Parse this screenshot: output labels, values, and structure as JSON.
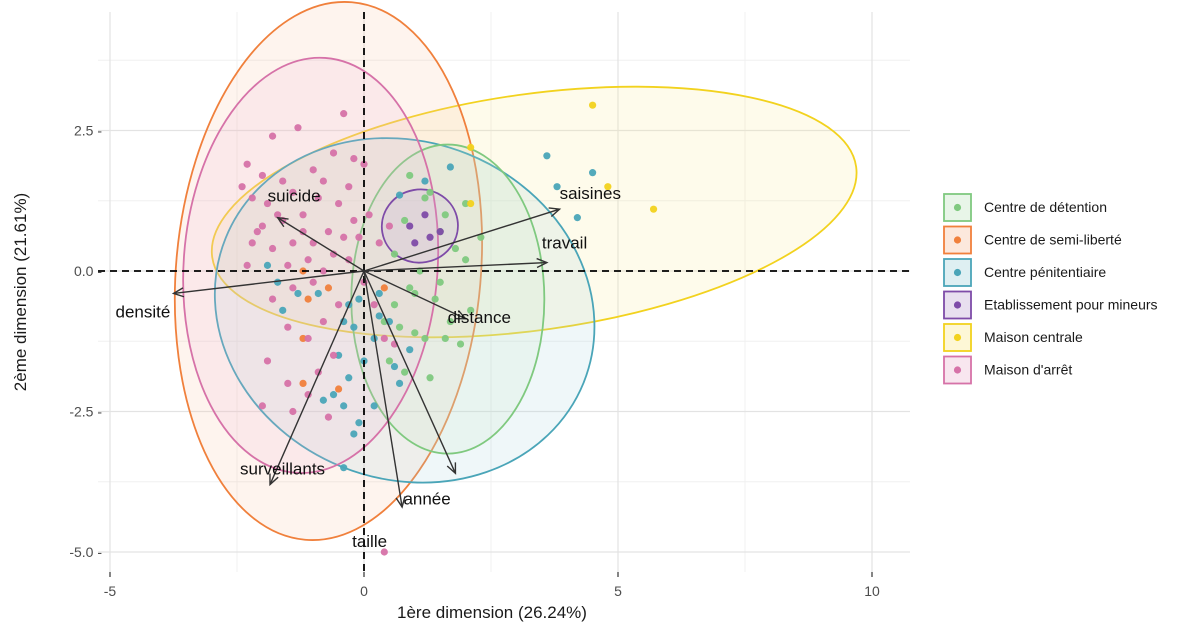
{
  "chart_data": {
    "type": "scatter",
    "title": "",
    "xlabel": "1ère dimension (26.24%)",
    "ylabel": "2ème dimension (21.61%)",
    "xlim": [
      -10,
      10.8
    ],
    "ylim": [
      -5.4,
      4.75
    ],
    "x_ticks": [
      -5,
      0,
      5,
      10
    ],
    "x_tick_labels": [
      "-5",
      "0",
      "5",
      "10"
    ],
    "y_ticks": [
      -5,
      -2.5,
      0,
      2.5
    ],
    "y_tick_labels": [
      "-5.0 -",
      "-2.5 -",
      "0.0 -",
      "2.5 -"
    ],
    "grid": true,
    "legend_position": "right",
    "reference_lines": {
      "x": 0,
      "y": 0,
      "style": "dashed"
    },
    "series": [
      {
        "name": "Centre de détention",
        "color": "#7FC97F",
        "points": [
          [
            1.2,
            1.3
          ],
          [
            0.8,
            0.9
          ],
          [
            1.5,
            0.7
          ],
          [
            1.8,
            0.4
          ],
          [
            2.0,
            0.2
          ],
          [
            1.1,
            0.0
          ],
          [
            0.9,
            -0.3
          ],
          [
            1.4,
            -0.5
          ],
          [
            1.7,
            -0.9
          ],
          [
            0.6,
            -0.6
          ],
          [
            0.7,
            -1.0
          ],
          [
            1.0,
            -1.1
          ],
          [
            1.2,
            -1.2
          ],
          [
            1.6,
            -1.2
          ],
          [
            1.9,
            -1.3
          ],
          [
            2.1,
            -0.7
          ],
          [
            0.5,
            -1.6
          ],
          [
            0.8,
            -1.8
          ],
          [
            1.3,
            -1.9
          ],
          [
            0.4,
            -0.9
          ],
          [
            2.3,
            0.6
          ],
          [
            1.6,
            1.0
          ],
          [
            0.9,
            1.7
          ],
          [
            1.3,
            1.4
          ],
          [
            1.0,
            -0.4
          ],
          [
            1.5,
            -0.2
          ],
          [
            0.6,
            0.3
          ],
          [
            2.0,
            1.2
          ]
        ]
      },
      {
        "name": "Centre de semi-liberté",
        "color": "#F0803C",
        "points": [
          [
            -1.2,
            0.0
          ],
          [
            -1.1,
            -0.5
          ],
          [
            -1.2,
            -2.0
          ],
          [
            -0.5,
            -2.1
          ],
          [
            -1.2,
            -1.2
          ],
          [
            0.4,
            -0.3
          ],
          [
            -0.7,
            -0.3
          ]
        ]
      },
      {
        "name": "Centre pénitentiaire",
        "color": "#4AA5B8",
        "points": [
          [
            3.6,
            2.05
          ],
          [
            4.2,
            0.95
          ],
          [
            4.5,
            1.75
          ],
          [
            3.8,
            1.5
          ],
          [
            1.7,
            1.85
          ],
          [
            1.2,
            1.6
          ],
          [
            0.7,
            1.35
          ],
          [
            -0.3,
            -0.6
          ],
          [
            -0.2,
            -1.0
          ],
          [
            -0.4,
            -0.9
          ],
          [
            -0.5,
            -1.5
          ],
          [
            -0.3,
            -1.9
          ],
          [
            -0.8,
            -2.3
          ],
          [
            -0.4,
            -2.4
          ],
          [
            -0.1,
            -2.7
          ],
          [
            -0.4,
            -3.5
          ],
          [
            0.2,
            -1.2
          ],
          [
            -0.1,
            -0.5
          ],
          [
            0.3,
            -0.8
          ],
          [
            0.5,
            -0.9
          ],
          [
            0.0,
            -1.6
          ],
          [
            -0.6,
            -2.2
          ],
          [
            -0.9,
            -0.4
          ],
          [
            -1.6,
            -0.7
          ],
          [
            -1.3,
            -0.4
          ],
          [
            -1.9,
            0.1
          ],
          [
            -1.7,
            -0.2
          ],
          [
            0.6,
            -1.7
          ],
          [
            0.2,
            -2.4
          ],
          [
            0.3,
            -0.4
          ],
          [
            0.7,
            -2.0
          ],
          [
            -0.2,
            -2.9
          ],
          [
            0.9,
            -1.4
          ]
        ]
      },
      {
        "name": "Etablissement pour mineurs",
        "color": "#7E4BA8",
        "points": [
          [
            1.2,
            1.0
          ],
          [
            0.9,
            0.8
          ],
          [
            1.3,
            0.6
          ],
          [
            1.0,
            0.5
          ],
          [
            1.5,
            0.7
          ]
        ]
      },
      {
        "name": "Maison centrale",
        "color": "#F2D21E",
        "points": [
          [
            4.5,
            2.95
          ],
          [
            5.7,
            1.1
          ],
          [
            4.8,
            1.5
          ],
          [
            2.1,
            2.2
          ],
          [
            2.1,
            1.2
          ]
        ]
      },
      {
        "name": "Maison d'arrêt",
        "color": "#D672A8",
        "points": [
          [
            -1.3,
            2.55
          ],
          [
            -0.4,
            2.8
          ],
          [
            -0.6,
            2.1
          ],
          [
            -0.2,
            2.0
          ],
          [
            -1.8,
            2.4
          ],
          [
            -2.3,
            1.9
          ],
          [
            -2.0,
            1.7
          ],
          [
            -1.6,
            1.6
          ],
          [
            -1.0,
            1.8
          ],
          [
            -0.8,
            1.6
          ],
          [
            -1.4,
            1.4
          ],
          [
            -2.2,
            1.3
          ],
          [
            -1.9,
            1.2
          ],
          [
            -0.9,
            1.3
          ],
          [
            -0.5,
            1.2
          ],
          [
            -1.2,
            1.0
          ],
          [
            -1.6,
            0.9
          ],
          [
            -2.0,
            0.8
          ],
          [
            -0.7,
            0.7
          ],
          [
            -0.4,
            0.6
          ],
          [
            -1.0,
            0.5
          ],
          [
            -1.4,
            0.5
          ],
          [
            -1.8,
            0.4
          ],
          [
            -2.2,
            0.5
          ],
          [
            -0.6,
            0.3
          ],
          [
            -0.3,
            0.2
          ],
          [
            -1.1,
            0.2
          ],
          [
            -1.5,
            0.1
          ],
          [
            -2.3,
            0.1
          ],
          [
            -0.8,
            0.0
          ],
          [
            -1.0,
            -0.2
          ],
          [
            -1.4,
            -0.3
          ],
          [
            -1.8,
            -0.5
          ],
          [
            -0.5,
            -0.6
          ],
          [
            -0.8,
            -0.9
          ],
          [
            -1.1,
            -1.2
          ],
          [
            -1.5,
            -1.0
          ],
          [
            -0.6,
            -1.5
          ],
          [
            -0.9,
            -1.8
          ],
          [
            -1.5,
            -2.0
          ],
          [
            -1.1,
            -2.2
          ],
          [
            -0.7,
            -2.6
          ],
          [
            -2.0,
            -2.4
          ],
          [
            -1.4,
            -2.5
          ],
          [
            -1.9,
            -1.6
          ],
          [
            -0.3,
            1.5
          ],
          [
            0.1,
            1.0
          ],
          [
            -0.1,
            0.6
          ],
          [
            0.3,
            0.5
          ],
          [
            0.5,
            0.8
          ],
          [
            0.0,
            -0.2
          ],
          [
            0.2,
            -0.6
          ],
          [
            0.4,
            -1.2
          ],
          [
            0.6,
            -1.3
          ],
          [
            0.4,
            -5.0
          ],
          [
            -2.1,
            0.7
          ],
          [
            -2.4,
            1.5
          ],
          [
            -1.2,
            0.7
          ],
          [
            -0.2,
            0.9
          ],
          [
            -1.7,
            1.0
          ],
          [
            0.0,
            1.9
          ]
        ]
      }
    ],
    "ellipses": [
      {
        "series": "Maison centrale",
        "color": "#F2D21E",
        "fill": "#F7EB8E",
        "center": [
          3.35,
          1.05
        ],
        "rx": 6.4,
        "ry": 2.1,
        "angle": -8
      },
      {
        "series": "Centre de semi-liberté",
        "color": "#F0803C",
        "fill": "#FAC3A0",
        "center": [
          -0.7,
          0.0
        ],
        "rx": 3.0,
        "ry": 4.8,
        "angle": 5
      },
      {
        "series": "Centre pénitentiaire",
        "color": "#4AA5B8",
        "fill": "#A6D4DE",
        "center": [
          0.8,
          -0.7
        ],
        "rx": 3.8,
        "ry": 3.0,
        "angle": 22
      },
      {
        "series": "Centre de détention",
        "color": "#7FC97F",
        "fill": "#C6E8C6",
        "center": [
          1.65,
          -0.5
        ],
        "rx": 1.9,
        "ry": 2.75,
        "angle": 0
      },
      {
        "series": "Maison d'arrêt",
        "color": "#D672A8",
        "fill": "#EDB9D6",
        "center": [
          -1.05,
          0.1
        ],
        "rx": 2.5,
        "ry": 3.7,
        "angle": 4
      },
      {
        "series": "Etablissement pour mineurs",
        "color": "#7E4BA8",
        "fill": "#C2A6DA",
        "center": [
          1.1,
          0.8
        ],
        "rx": 0.75,
        "ry": 0.65,
        "angle": -10
      }
    ],
    "variables": [
      {
        "label": "saisines",
        "x": 3.85,
        "y": 1.1
      },
      {
        "label": "travail",
        "x": 3.6,
        "y": 0.15
      },
      {
        "label": "distance",
        "x": 2.0,
        "y": -0.85
      },
      {
        "label": "densité",
        "x": -3.75,
        "y": -0.4
      },
      {
        "label": "suicide",
        "x": -1.7,
        "y": 0.95
      },
      {
        "label": "surveillants",
        "x": -1.85,
        "y": -3.8
      },
      {
        "label": "année",
        "x": 1.8,
        "y": -3.6
      },
      {
        "label": "taille",
        "x": 0.75,
        "y": -4.2
      }
    ]
  }
}
